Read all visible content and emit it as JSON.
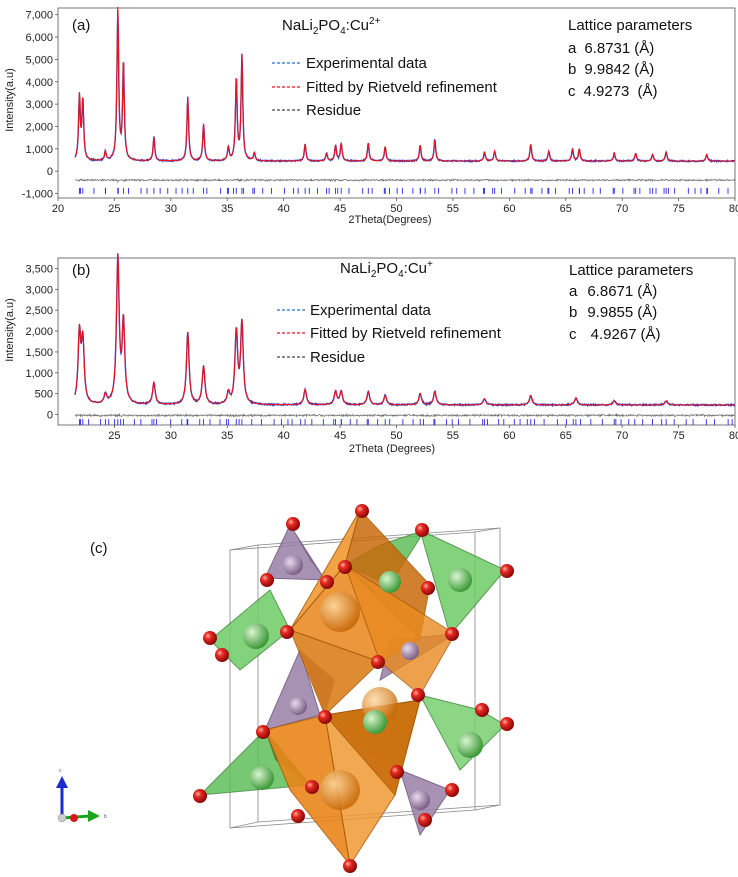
{
  "chart_data": [
    {
      "type": "line",
      "panel_label": "(a)",
      "title": "NaLi2PO4:Cu2+",
      "title_main": "NaLi",
      "title_sub1": "2",
      "title_mid": "PO",
      "title_sub2": "4",
      "title_ion": ":Cu",
      "title_sup": "2+",
      "xlabel": "2Theta(Degrees)",
      "ylabel": "Intensity(a.u)",
      "xlim": [
        20,
        80
      ],
      "ylim": [
        -1200,
        7300
      ],
      "xticks": [
        "20",
        "25",
        "30",
        "35",
        "40",
        "45",
        "50",
        "55",
        "60",
        "65",
        "70",
        "75",
        "80"
      ],
      "yticks": [
        "-1,000",
        "0",
        "1,000",
        "2,000",
        "3,000",
        "4,000",
        "5,000",
        "6,000",
        "7,000"
      ],
      "ytick_values": [
        -1000,
        0,
        1000,
        2000,
        3000,
        4000,
        5000,
        6000,
        7000
      ],
      "legend": [
        "Experimental data",
        "Fitted by Rietveld refinement",
        "Residue"
      ],
      "lattice_title": "Lattice parameters",
      "lattice": [
        {
          "axis": "a",
          "value": "6.8731",
          "unit": "(Å)"
        },
        {
          "axis": "b",
          "value": "9.9842",
          "unit": "(Å)"
        },
        {
          "axis": "c",
          "value": "4.9273",
          "unit": " (Å)"
        }
      ],
      "baseline": 450,
      "residue_level": -400,
      "peaks": [
        {
          "x": 21.9,
          "y": 3300
        },
        {
          "x": 22.2,
          "y": 3150
        },
        {
          "x": 24.2,
          "y": 850
        },
        {
          "x": 25.3,
          "y": 7200
        },
        {
          "x": 25.8,
          "y": 4800
        },
        {
          "x": 28.5,
          "y": 1500
        },
        {
          "x": 31.5,
          "y": 3300
        },
        {
          "x": 32.9,
          "y": 2100
        },
        {
          "x": 35.1,
          "y": 1050
        },
        {
          "x": 35.8,
          "y": 4100
        },
        {
          "x": 36.3,
          "y": 5100
        },
        {
          "x": 37.4,
          "y": 800
        },
        {
          "x": 41.9,
          "y": 1200
        },
        {
          "x": 43.8,
          "y": 800
        },
        {
          "x": 44.6,
          "y": 1150
        },
        {
          "x": 45.1,
          "y": 1250
        },
        {
          "x": 47.5,
          "y": 1250
        },
        {
          "x": 49.0,
          "y": 1100
        },
        {
          "x": 52.1,
          "y": 1150
        },
        {
          "x": 53.4,
          "y": 1400
        },
        {
          "x": 57.8,
          "y": 850
        },
        {
          "x": 58.7,
          "y": 900
        },
        {
          "x": 61.9,
          "y": 1200
        },
        {
          "x": 63.5,
          "y": 900
        },
        {
          "x": 65.6,
          "y": 1000
        },
        {
          "x": 66.2,
          "y": 1000
        },
        {
          "x": 69.3,
          "y": 800
        },
        {
          "x": 71.2,
          "y": 800
        },
        {
          "x": 72.7,
          "y": 750
        },
        {
          "x": 73.9,
          "y": 850
        },
        {
          "x": 77.5,
          "y": 750
        }
      ]
    },
    {
      "type": "line",
      "panel_label": "(b)",
      "title": "NaLi2PO4:Cu+",
      "title_main": "NaLi",
      "title_sub1": "2",
      "title_mid": "PO",
      "title_sub2": "4",
      "title_ion": ":Cu",
      "title_sup": "+",
      "xlabel": "2Theta (Degrees)",
      "ylabel": "Intensity(a.u)",
      "xlim": [
        20,
        80
      ],
      "ylim": [
        -250,
        3750
      ],
      "xticks": [
        "25",
        "30",
        "35",
        "40",
        "45",
        "50",
        "55",
        "60",
        "65",
        "70",
        "75",
        "80"
      ],
      "yticks": [
        "0",
        "500",
        "1,000",
        "1,500",
        "2,000",
        "2,500",
        "3,000",
        "3,500"
      ],
      "ytick_values": [
        0,
        500,
        1000,
        1500,
        2000,
        2500,
        3000,
        3500
      ],
      "legend": [
        "Experimental data",
        "Fitted by Rietveld refinement",
        "Residue"
      ],
      "lattice_title": "Lattice parameters",
      "lattice": [
        {
          "axis": "a",
          "value": "6.8671",
          "unit": "(Å)"
        },
        {
          "axis": "b",
          "value": "9.9855",
          "unit": "(Å)"
        },
        {
          "axis": "c",
          "value": " 4.9267",
          "unit": "(Å)"
        }
      ],
      "baseline": 230,
      "residue_level": -20,
      "peaks": [
        {
          "x": 21.9,
          "y": 1900
        },
        {
          "x": 22.2,
          "y": 1700
        },
        {
          "x": 24.2,
          "y": 450
        },
        {
          "x": 25.3,
          "y": 3700
        },
        {
          "x": 25.8,
          "y": 2150
        },
        {
          "x": 28.5,
          "y": 750
        },
        {
          "x": 31.5,
          "y": 1950
        },
        {
          "x": 32.9,
          "y": 1150
        },
        {
          "x": 35.1,
          "y": 500
        },
        {
          "x": 35.8,
          "y": 1950
        },
        {
          "x": 36.3,
          "y": 2150
        },
        {
          "x": 41.9,
          "y": 600
        },
        {
          "x": 44.6,
          "y": 550
        },
        {
          "x": 45.1,
          "y": 550
        },
        {
          "x": 47.5,
          "y": 550
        },
        {
          "x": 49.0,
          "y": 450
        },
        {
          "x": 52.1,
          "y": 500
        },
        {
          "x": 53.4,
          "y": 550
        },
        {
          "x": 57.8,
          "y": 380
        },
        {
          "x": 61.9,
          "y": 450
        },
        {
          "x": 65.9,
          "y": 400
        },
        {
          "x": 69.3,
          "y": 330
        },
        {
          "x": 73.9,
          "y": 330
        }
      ]
    }
  ],
  "panel_c_label": "(c)",
  "structure_axes": {
    "c": "c",
    "b": "b"
  },
  "colors": {
    "experimental": "#1f3fd0",
    "fitted": "#e8141e",
    "residue": "#6b6b6b",
    "bragg": "#2a2ae0",
    "oxygen": "#d61a1a",
    "orange_polyhedra": "#e9861a",
    "green_polyhedra": "#5fbf5a",
    "purple_polyhedra": "#9a7fa6"
  }
}
